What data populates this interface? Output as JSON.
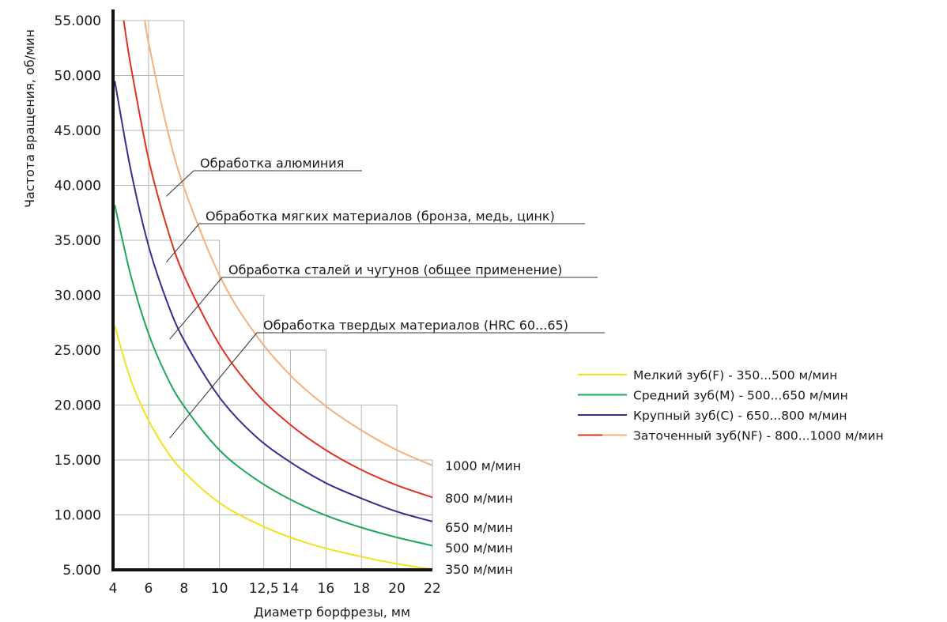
{
  "chart_data": {
    "type": "line",
    "xlabel": "Диаметр борфрезы, мм",
    "ylabel": "Частота вращения, об/мин",
    "xlim": [
      4,
      22
    ],
    "ylim": [
      5000,
      55000
    ],
    "x_ticks": [
      4,
      6,
      8,
      10,
      12.5,
      14,
      16,
      18,
      20,
      22
    ],
    "x_tick_labels": [
      "4",
      "6",
      "8",
      "10",
      "12,5",
      "14",
      "16",
      "18",
      "20",
      "22"
    ],
    "y_ticks": [
      5000,
      10000,
      15000,
      20000,
      25000,
      30000,
      35000,
      40000,
      45000,
      50000,
      55000
    ],
    "y_tick_labels": [
      "5.000",
      "10.000",
      "15.000",
      "20.000",
      "25.000",
      "30.000",
      "35.000",
      "40.000",
      "45.000",
      "50.000",
      "55.000"
    ],
    "grid": true,
    "grid_step": [
      {
        "x": 6,
        "ytop": 55000
      },
      {
        "x": 8,
        "ytop": 55000
      },
      {
        "x": 10,
        "ytop": 35000
      },
      {
        "x": 12.5,
        "ytop": 30000
      },
      {
        "x": 14,
        "ytop": 25000
      },
      {
        "x": 16,
        "ytop": 25000
      },
      {
        "x": 18,
        "ytop": 20000
      },
      {
        "x": 20,
        "ytop": 20000
      },
      {
        "x": 22,
        "ytop": 15000
      }
    ],
    "series": [
      {
        "name": "Мелкий зуб(F) - 350...500 м/мин",
        "color": "#f2e21a",
        "speed": 350,
        "end_label": "350 м/мин",
        "x": [
          4.1,
          5,
          6,
          7,
          8,
          10,
          12,
          14,
          16,
          18,
          20,
          22
        ],
        "y": [
          27200,
          22300,
          18600,
          15900,
          13900,
          11100,
          9300,
          7950,
          6950,
          6200,
          5550,
          5050
        ]
      },
      {
        "name": "Средний зуб(M) - 500...650 м/мин",
        "color": "#1aa85a",
        "speed": 500,
        "end_label": "500 м/мин",
        "x": [
          4.1,
          5,
          6,
          7,
          8,
          10,
          12,
          14,
          16,
          18,
          20,
          22
        ],
        "y": [
          38200,
          31800,
          26500,
          22700,
          19900,
          15900,
          13300,
          11400,
          9950,
          8850,
          7950,
          7200
        ]
      },
      {
        "name": "Крупный зуб(C) - 650...800 м/мин",
        "color": "#3a2d8c",
        "speed": 650,
        "end_label": "650 м/мин",
        "x": [
          4.1,
          5,
          6,
          7,
          8,
          10,
          12,
          14,
          16,
          18,
          20,
          22
        ],
        "y": [
          49500,
          41400,
          34500,
          29600,
          25900,
          20700,
          17200,
          14800,
          12900,
          11500,
          10300,
          9400
        ]
      },
      {
        "name": "Заточенный зуб(NF) - 800...1000 м/мин",
        "color": "#e03020",
        "speed": 800,
        "end_label": "800 м/мин",
        "x": [
          4.6,
          5,
          6,
          7,
          8,
          10,
          12,
          14,
          16,
          18,
          20,
          22
        ],
        "y": [
          55000,
          50900,
          42400,
          36400,
          31800,
          25500,
          21200,
          18200,
          15900,
          14100,
          12700,
          11600
        ]
      },
      {
        "name": "",
        "color": "#f4b07a",
        "speed": 1000,
        "end_label": "1000 м/мин",
        "x": [
          5.8,
          6,
          7,
          8,
          10,
          12,
          14,
          16,
          18,
          20,
          22
        ],
        "y": [
          55000,
          53000,
          45500,
          39800,
          31800,
          26500,
          22700,
          19900,
          17700,
          15900,
          14500
        ]
      }
    ],
    "annotations": [
      {
        "text": "Обработка алюминия",
        "x": 7.0,
        "y": 39000
      },
      {
        "text": "Обработка мягких материалов (бронза, медь, цинк)",
        "x": 7.0,
        "y": 33000
      },
      {
        "text": "Обработка сталей и чугунов (общее применение)",
        "x": 7.2,
        "y": 26000
      },
      {
        "text": "Обработка твердых материалов (HRC 60...65)",
        "x": 7.2,
        "y": 17000
      }
    ],
    "legend_position": "right"
  }
}
